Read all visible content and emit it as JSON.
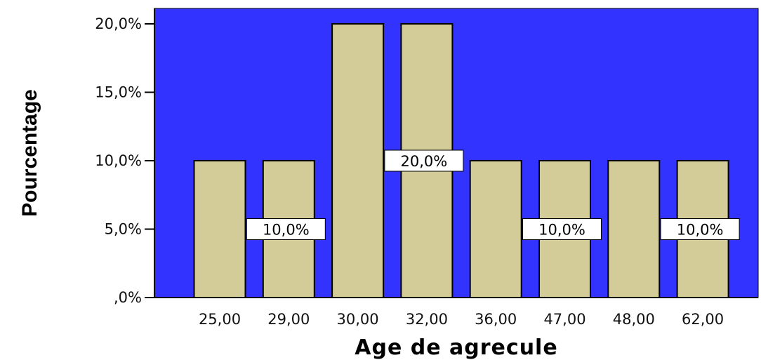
{
  "chart_data": {
    "type": "bar",
    "categories": [
      "25,00",
      "29,00",
      "30,00",
      "32,00",
      "36,00",
      "47,00",
      "48,00",
      "62,00"
    ],
    "values": [
      10,
      10,
      20,
      20,
      10,
      10,
      10,
      10
    ],
    "data_labels": [
      "",
      "10,0%",
      "",
      "20,0%",
      "",
      "10,0%",
      "",
      "10,0%"
    ],
    "xlabel": "Age de agrecule",
    "ylabel": "Pourcentage",
    "ylim": [
      0,
      20
    ],
    "yticks": [
      {
        "value": 0,
        "label": ",0%"
      },
      {
        "value": 5,
        "label": "5,0%"
      },
      {
        "value": 10,
        "label": "10,0%"
      },
      {
        "value": 15,
        "label": "15,0%"
      },
      {
        "value": 20,
        "label": "20,0%"
      }
    ],
    "grid": false,
    "colors": {
      "plot_background": "#3333ff",
      "bar_fill": "#d4cc98",
      "bar_stroke": "#000000",
      "label_box": "#ffffff"
    }
  }
}
